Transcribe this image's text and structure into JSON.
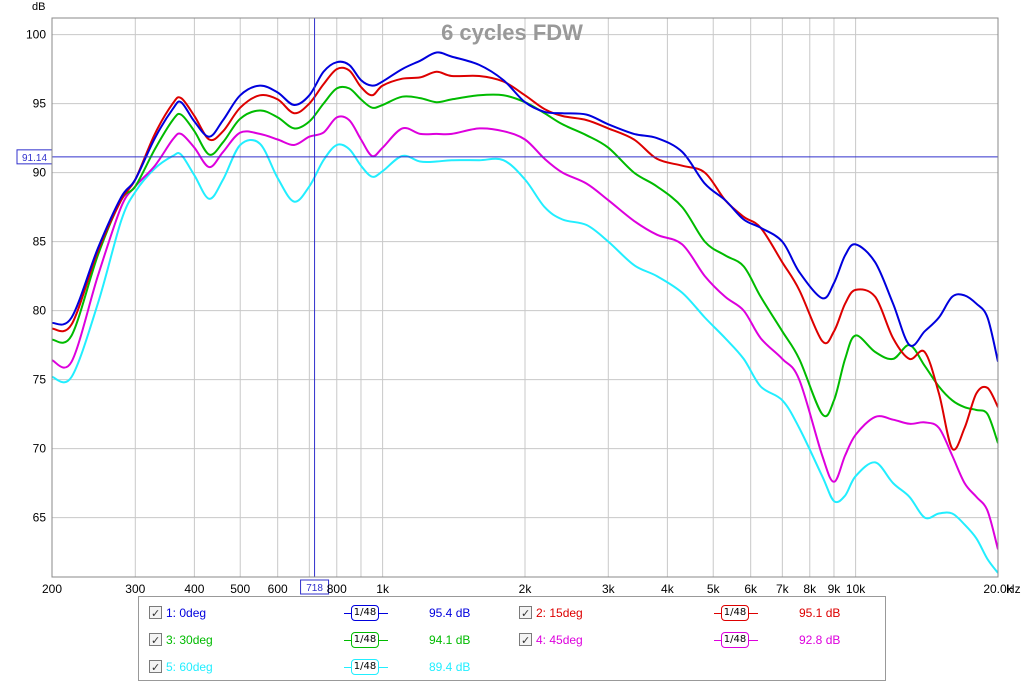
{
  "chart_data": {
    "type": "line",
    "title": "6 cycles FDW",
    "ylabel": "dB",
    "xunit": "Hz",
    "xscale": "log",
    "xlim": [
      200,
      20000
    ],
    "ylim": [
      60.7,
      101.2
    ],
    "grid": true,
    "x_ticks": [
      {
        "value": 200,
        "label": "200"
      },
      {
        "value": 300,
        "label": "300"
      },
      {
        "value": 400,
        "label": "400"
      },
      {
        "value": 500,
        "label": "500"
      },
      {
        "value": 600,
        "label": "600"
      },
      {
        "value": 800,
        "label": "800"
      },
      {
        "value": 1000,
        "label": "1k"
      },
      {
        "value": 2000,
        "label": "2k"
      },
      {
        "value": 3000,
        "label": "3k"
      },
      {
        "value": 4000,
        "label": "4k"
      },
      {
        "value": 5000,
        "label": "5k"
      },
      {
        "value": 6000,
        "label": "6k"
      },
      {
        "value": 7000,
        "label": "7k"
      },
      {
        "value": 8000,
        "label": "8k"
      },
      {
        "value": 9000,
        "label": "9k"
      },
      {
        "value": 10000,
        "label": "10k"
      },
      {
        "value": 20000,
        "label": "20.0k"
      }
    ],
    "y_ticks": [
      65,
      70,
      75,
      80,
      85,
      90,
      95,
      100
    ],
    "cursor": {
      "x": 718,
      "x_label": "718",
      "y": 91.14,
      "y_label": "91.14"
    },
    "series": [
      {
        "name": "1: 0deg",
        "color": "#0000dd",
        "x": [
          200,
          220,
          250,
          280,
          300,
          330,
          360,
          375,
          400,
          430,
          460,
          500,
          550,
          600,
          650,
          700,
          750,
          800,
          850,
          900,
          950,
          1000,
          1100,
          1200,
          1300,
          1400,
          1600,
          1800,
          2000,
          2200,
          2400,
          2700,
          3000,
          3400,
          3800,
          4300,
          4800,
          5300,
          5800,
          6300,
          7000,
          7600,
          8500,
          9000,
          9500,
          10000,
          11000,
          12000,
          13000,
          14000,
          15000,
          16000,
          17000,
          18000,
          19000,
          20000
        ],
        "y": [
          79.1,
          79.5,
          84.5,
          88.2,
          89.5,
          92.5,
          94.6,
          95.1,
          93.7,
          92.6,
          93.8,
          95.6,
          96.3,
          95.8,
          94.9,
          95.6,
          97.3,
          98.0,
          97.8,
          96.7,
          96.3,
          96.6,
          97.5,
          98.1,
          98.7,
          98.4,
          97.8,
          96.7,
          95.1,
          94.4,
          94.3,
          94.2,
          93.5,
          92.8,
          92.5,
          91.5,
          89.2,
          88.0,
          86.6,
          86.0,
          85.0,
          82.8,
          80.9,
          82.0,
          84.0,
          84.8,
          83.5,
          80.5,
          77.5,
          78.5,
          79.5,
          81.0,
          81.1,
          80.5,
          79.5,
          76.3
        ]
      },
      {
        "name": "2: 15deg",
        "color": "#dd0000",
        "x": [
          200,
          220,
          250,
          280,
          300,
          330,
          360,
          375,
          400,
          430,
          460,
          500,
          550,
          600,
          650,
          700,
          750,
          800,
          850,
          900,
          950,
          1000,
          1100,
          1200,
          1300,
          1400,
          1600,
          1800,
          2000,
          2200,
          2400,
          2700,
          3000,
          3400,
          3800,
          4300,
          4800,
          5300,
          5800,
          6300,
          7000,
          7600,
          8500,
          9000,
          9500,
          10000,
          11000,
          12000,
          13000,
          14000,
          15000,
          16000,
          17000,
          18000,
          19000,
          20000
        ],
        "y": [
          78.7,
          79.0,
          84.3,
          88.0,
          89.5,
          92.8,
          95.0,
          95.4,
          94.1,
          92.4,
          93.0,
          94.7,
          95.6,
          95.3,
          94.3,
          95.0,
          96.4,
          97.5,
          97.4,
          96.2,
          95.6,
          96.3,
          96.8,
          96.9,
          97.3,
          97.0,
          97.0,
          96.6,
          95.6,
          94.6,
          94.1,
          93.8,
          93.2,
          92.4,
          91.0,
          90.5,
          90.0,
          88.0,
          86.8,
          86.0,
          83.5,
          81.5,
          77.8,
          78.5,
          80.5,
          81.5,
          81.0,
          78.0,
          76.5,
          77.0,
          74.0,
          70.0,
          71.5,
          74.0,
          74.4,
          73.0
        ]
      },
      {
        "name": "3: 30deg",
        "color": "#00bb00",
        "x": [
          200,
          220,
          250,
          280,
          300,
          330,
          360,
          375,
          400,
          430,
          460,
          500,
          550,
          600,
          650,
          700,
          750,
          800,
          850,
          900,
          950,
          1000,
          1100,
          1200,
          1300,
          1400,
          1600,
          1800,
          2000,
          2200,
          2400,
          2700,
          3000,
          3400,
          3800,
          4300,
          4800,
          5300,
          5800,
          6300,
          7000,
          7600,
          8500,
          9000,
          9500,
          10000,
          11000,
          12000,
          13000,
          14000,
          15000,
          16000,
          17000,
          18000,
          19000,
          20000
        ],
        "y": [
          77.9,
          78.2,
          84.0,
          88.0,
          89.0,
          91.7,
          93.8,
          94.2,
          93.0,
          91.3,
          92.2,
          93.9,
          94.5,
          94.0,
          93.2,
          93.7,
          95.0,
          96.1,
          96.1,
          95.3,
          94.7,
          94.9,
          95.5,
          95.4,
          95.1,
          95.3,
          95.6,
          95.6,
          95.1,
          94.3,
          93.5,
          92.7,
          91.8,
          90.0,
          89.0,
          87.5,
          85.0,
          84.0,
          83.2,
          81.0,
          78.5,
          76.5,
          72.5,
          73.5,
          76.5,
          78.2,
          77.0,
          76.5,
          77.5,
          76.0,
          74.5,
          73.5,
          73.0,
          72.8,
          72.5,
          70.4
        ]
      },
      {
        "name": "4: 45deg",
        "color": "#dd00dd",
        "x": [
          200,
          220,
          250,
          280,
          300,
          330,
          360,
          375,
          400,
          430,
          460,
          500,
          550,
          600,
          650,
          700,
          750,
          800,
          850,
          900,
          950,
          1000,
          1100,
          1200,
          1300,
          1400,
          1600,
          1800,
          2000,
          2200,
          2400,
          2700,
          3000,
          3400,
          3800,
          4300,
          4800,
          5300,
          5800,
          6300,
          7000,
          7600,
          8500,
          9000,
          9500,
          10000,
          11000,
          12000,
          13000,
          14000,
          15000,
          16000,
          17000,
          18000,
          19000,
          20000
        ],
        "y": [
          76.4,
          76.3,
          82.5,
          87.5,
          89.0,
          90.5,
          92.4,
          92.8,
          91.8,
          90.4,
          91.5,
          92.9,
          92.8,
          92.4,
          92.0,
          92.6,
          92.9,
          94.0,
          93.8,
          92.4,
          91.2,
          91.8,
          93.2,
          92.8,
          92.8,
          92.8,
          93.2,
          93.0,
          92.4,
          91.0,
          90.0,
          89.2,
          88.0,
          86.5,
          85.5,
          84.8,
          82.5,
          81.0,
          80.0,
          78.0,
          76.5,
          75.0,
          69.5,
          67.6,
          69.5,
          71.0,
          72.3,
          72.1,
          71.8,
          71.9,
          71.5,
          69.5,
          67.5,
          66.5,
          65.5,
          62.7
        ]
      },
      {
        "name": "5: 60deg",
        "color": "#22eeff",
        "x": [
          200,
          220,
          250,
          280,
          300,
          330,
          360,
          375,
          400,
          430,
          460,
          500,
          550,
          600,
          650,
          700,
          750,
          800,
          850,
          900,
          950,
          1000,
          1100,
          1200,
          1300,
          1400,
          1600,
          1800,
          2000,
          2200,
          2400,
          2700,
          3000,
          3400,
          3800,
          4300,
          4800,
          5300,
          5800,
          6300,
          7000,
          7600,
          8500,
          9000,
          9500,
          10000,
          11000,
          12000,
          13000,
          14000,
          15000,
          16000,
          17000,
          18000,
          19000,
          20000
        ],
        "y": [
          75.2,
          75.2,
          80.5,
          86.5,
          88.6,
          90.3,
          91.2,
          91.3,
          89.8,
          88.1,
          89.5,
          92.0,
          92.1,
          89.6,
          87.9,
          89.0,
          90.9,
          92.0,
          91.7,
          90.5,
          89.7,
          90.1,
          91.2,
          90.8,
          90.8,
          90.9,
          90.9,
          90.9,
          89.5,
          87.5,
          86.6,
          86.2,
          85.0,
          83.3,
          82.5,
          81.3,
          79.5,
          78.0,
          76.5,
          74.5,
          73.5,
          71.5,
          68.0,
          66.2,
          66.6,
          68.0,
          69.0,
          67.5,
          66.5,
          65.0,
          65.3,
          65.3,
          64.5,
          63.5,
          62.0,
          61.0
        ]
      }
    ]
  },
  "legend": {
    "items": [
      {
        "label": "1: 0deg",
        "smoothing": "1/48",
        "value": "95.4 dB",
        "color": "#0000dd"
      },
      {
        "label": "2: 15deg",
        "smoothing": "1/48",
        "value": "95.1 dB",
        "color": "#dd0000"
      },
      {
        "label": "3: 30deg",
        "smoothing": "1/48",
        "value": "94.1 dB",
        "color": "#00bb00"
      },
      {
        "label": "4: 45deg",
        "smoothing": "1/48",
        "value": "92.8 dB",
        "color": "#dd00dd"
      },
      {
        "label": "5: 60deg",
        "smoothing": "1/48",
        "value": "89.4 dB",
        "color": "#22eeff"
      }
    ]
  }
}
